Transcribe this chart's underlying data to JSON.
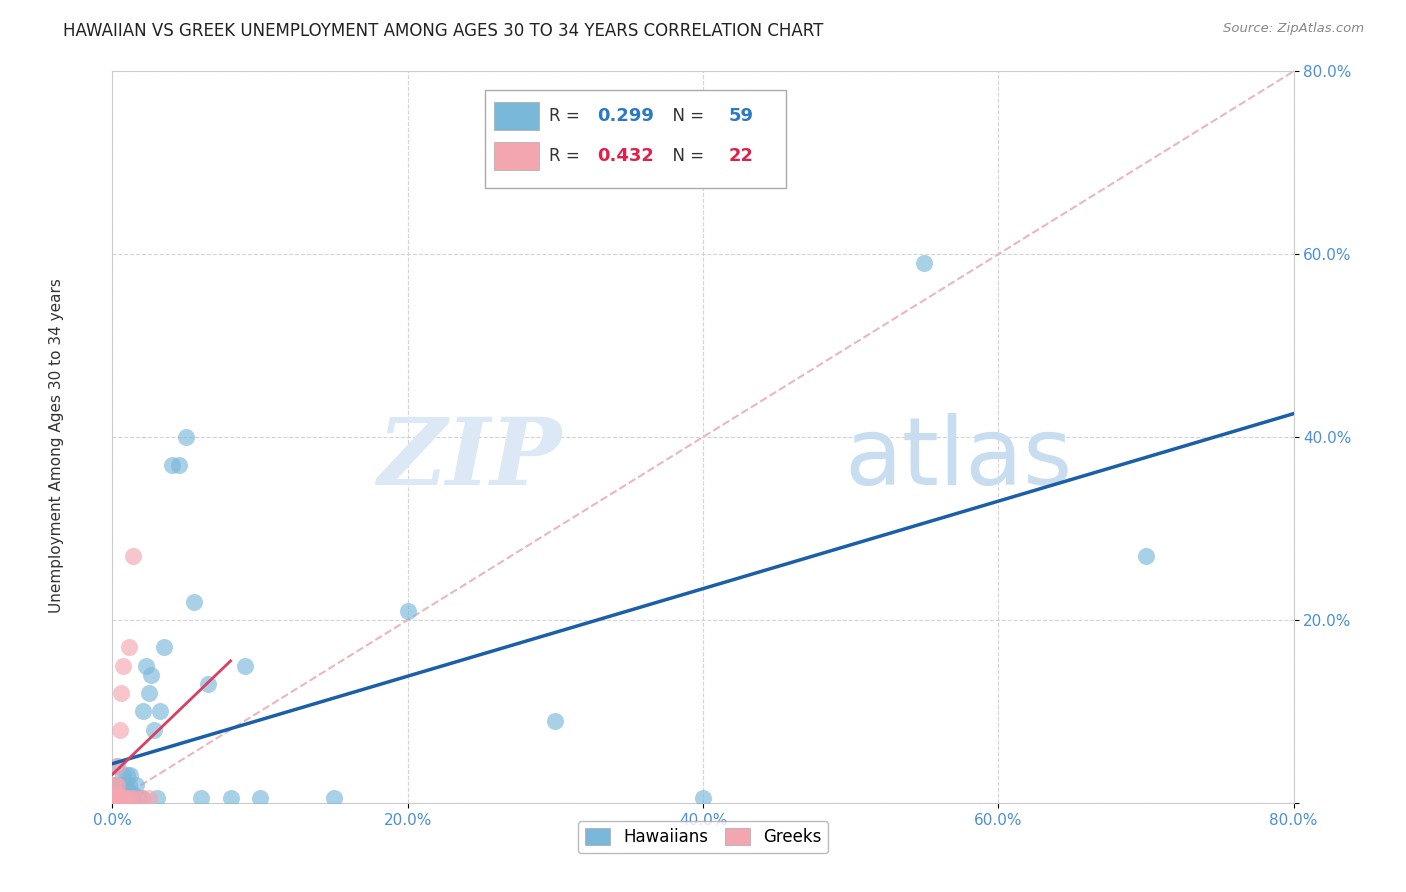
{
  "title": "HAWAIIAN VS GREEK UNEMPLOYMENT AMONG AGES 30 TO 34 YEARS CORRELATION CHART",
  "source": "Source: ZipAtlas.com",
  "ylabel": "Unemployment Among Ages 30 to 34 years",
  "xlim": [
    0.0,
    0.8
  ],
  "ylim": [
    0.0,
    0.8
  ],
  "xticks": [
    0.0,
    0.2,
    0.4,
    0.6,
    0.8
  ],
  "yticks": [
    0.0,
    0.2,
    0.4,
    0.6,
    0.8
  ],
  "xticklabels": [
    "0.0%",
    "20.0%",
    "40.0%",
    "60.0%",
    "80.0%"
  ],
  "yticklabels": [
    "",
    "20.0%",
    "40.0%",
    "60.0%",
    "80.0%"
  ],
  "hawaiian_color": "#7ab8d9",
  "greek_color": "#f4a6b0",
  "hawaiian_line_color": "#1a5fa8",
  "greek_line_color": "#d94060",
  "diagonal_color": "#e8b0b8",
  "hawaiian_R": 0.299,
  "hawaiian_N": 59,
  "greek_R": 0.432,
  "greek_N": 22,
  "hawaiian_x": [
    0.001,
    0.001,
    0.002,
    0.003,
    0.003,
    0.004,
    0.004,
    0.005,
    0.005,
    0.005,
    0.006,
    0.006,
    0.006,
    0.007,
    0.007,
    0.007,
    0.007,
    0.008,
    0.008,
    0.008,
    0.009,
    0.009,
    0.01,
    0.01,
    0.01,
    0.011,
    0.011,
    0.012,
    0.012,
    0.013,
    0.014,
    0.015,
    0.016,
    0.017,
    0.018,
    0.02,
    0.021,
    0.023,
    0.025,
    0.026,
    0.028,
    0.03,
    0.032,
    0.035,
    0.04,
    0.045,
    0.05,
    0.055,
    0.06,
    0.065,
    0.08,
    0.09,
    0.1,
    0.15,
    0.2,
    0.3,
    0.4,
    0.55,
    0.7
  ],
  "hawaiian_y": [
    0.02,
    0.005,
    0.01,
    0.02,
    0.04,
    0.005,
    0.01,
    0.005,
    0.01,
    0.015,
    0.005,
    0.01,
    0.02,
    0.005,
    0.01,
    0.02,
    0.03,
    0.005,
    0.01,
    0.02,
    0.01,
    0.02,
    0.005,
    0.01,
    0.03,
    0.005,
    0.02,
    0.01,
    0.03,
    0.005,
    0.01,
    0.005,
    0.02,
    0.005,
    0.005,
    0.005,
    0.1,
    0.15,
    0.12,
    0.14,
    0.08,
    0.005,
    0.1,
    0.17,
    0.37,
    0.37,
    0.4,
    0.22,
    0.005,
    0.13,
    0.005,
    0.15,
    0.005,
    0.005,
    0.21,
    0.09,
    0.005,
    0.59,
    0.27
  ],
  "greek_x": [
    0.001,
    0.001,
    0.002,
    0.002,
    0.003,
    0.003,
    0.004,
    0.004,
    0.005,
    0.005,
    0.006,
    0.006,
    0.007,
    0.007,
    0.008,
    0.01,
    0.011,
    0.012,
    0.014,
    0.015,
    0.02,
    0.025
  ],
  "greek_y": [
    0.005,
    0.01,
    0.005,
    0.02,
    0.02,
    0.04,
    0.005,
    0.01,
    0.005,
    0.08,
    0.005,
    0.12,
    0.005,
    0.15,
    0.005,
    0.005,
    0.17,
    0.005,
    0.27,
    0.005,
    0.005,
    0.005
  ],
  "watermark_zip": "ZIP",
  "watermark_atlas": "atlas",
  "background_color": "#ffffff",
  "grid_color": "#d0d0d0",
  "legend_text_color": "#333333",
  "legend_value_color_hawaiian": "#2979c4",
  "legend_value_color_greek": "#e0204a"
}
